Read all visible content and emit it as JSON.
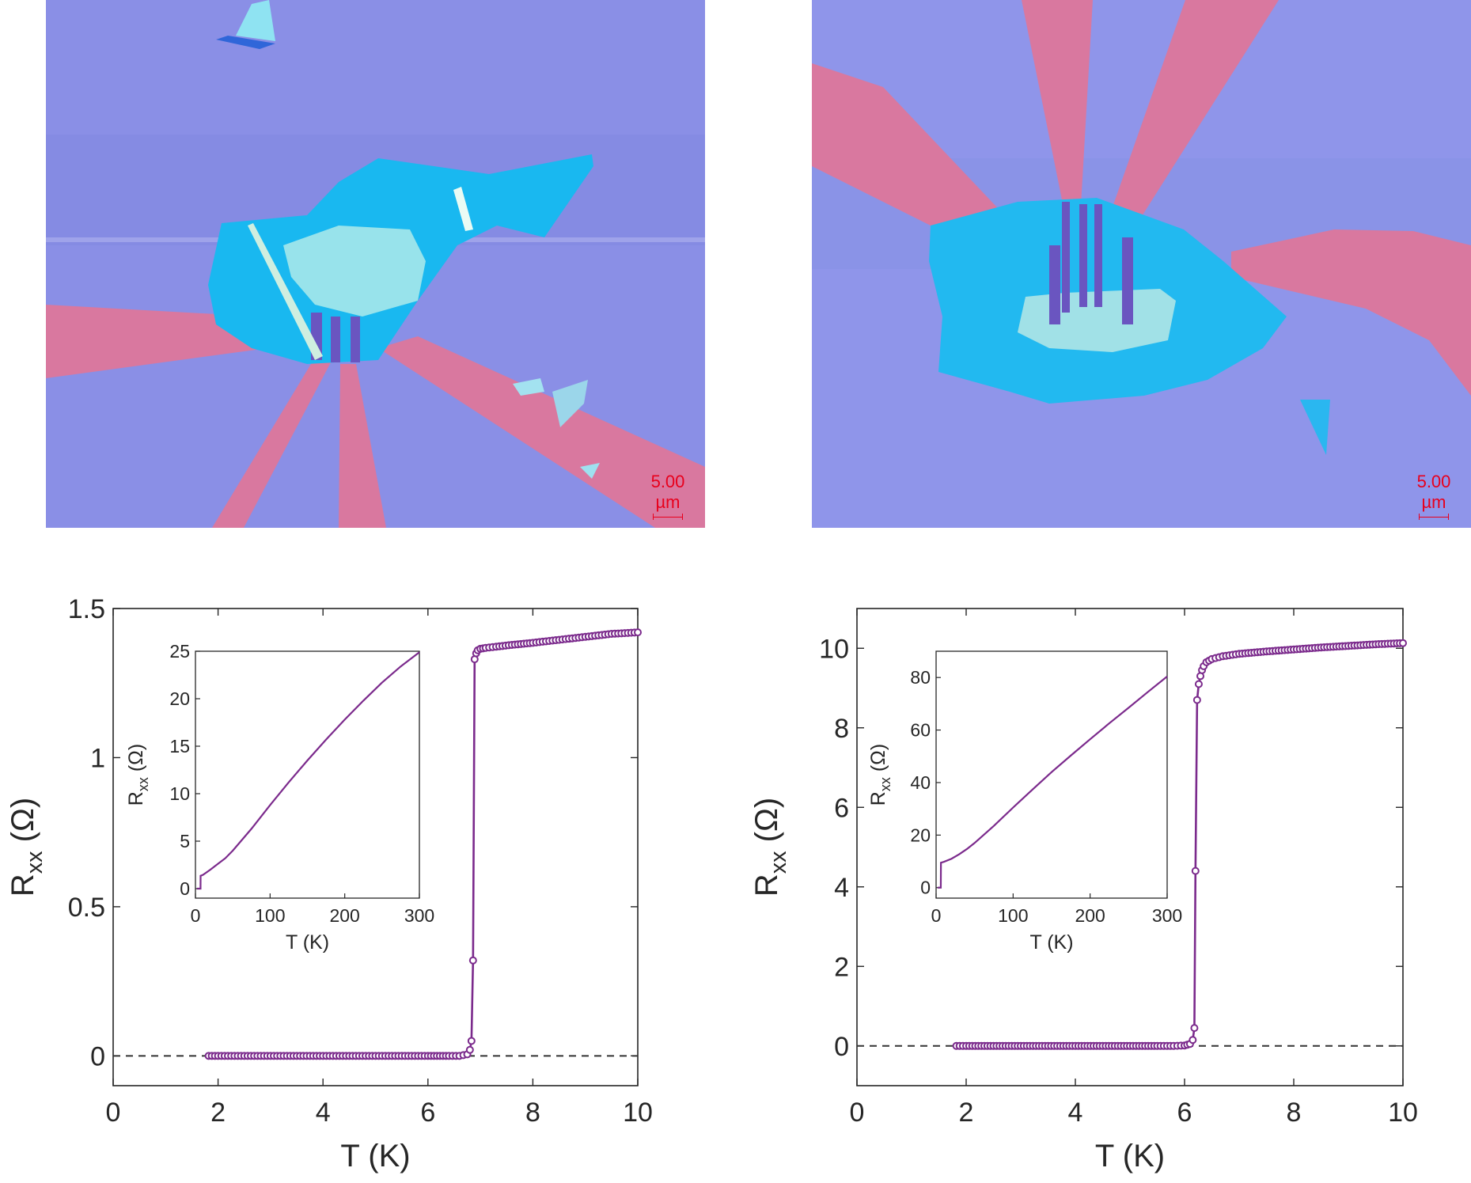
{
  "figure": {
    "accent_color": "#7b2a8c",
    "photos": [
      {
        "id": "left",
        "scale_label": "5.00 µm",
        "substrate_color": "#8a8fe6",
        "flake_color": "#19b8f0",
        "electrode_color": "#d9789f"
      },
      {
        "id": "right",
        "scale_label": "5.00 µm",
        "substrate_color": "#8f95ea",
        "flake_color": "#22b9f0",
        "electrode_color": "#d9789f"
      }
    ]
  },
  "chart_data": [
    {
      "type": "line",
      "xlabel": "T (K)",
      "ylabel_main": "R",
      "ylabel_sub": "xx",
      "ylabel_unit": "(Ω)",
      "xlim": [
        0,
        10
      ],
      "ylim": [
        -0.1,
        1.5
      ],
      "xticks": [
        "0",
        "2",
        "4",
        "6",
        "8",
        "10"
      ],
      "yticks": [
        {
          "v": 0,
          "label": "0"
        },
        {
          "v": 0.5,
          "label": "0.5"
        },
        {
          "v": 1,
          "label": "1"
        },
        {
          "v": 1.5,
          "label": "1.5"
        }
      ],
      "zero_line": "dashed",
      "series": [
        {
          "color": "#7b2a8c",
          "marker": "open-circle",
          "x": [
            1.82,
            2.0,
            2.5,
            3.0,
            3.5,
            4.0,
            4.5,
            5.0,
            5.5,
            6.0,
            6.4,
            6.6,
            6.75,
            6.8,
            6.83,
            6.86,
            6.89,
            6.92,
            6.95,
            7.0,
            7.1,
            7.3,
            7.6,
            8.0,
            8.5,
            9.0,
            9.5,
            10.0
          ],
          "y": [
            0,
            0,
            0,
            0,
            0,
            0,
            0,
            0,
            0,
            0,
            0,
            0,
            0.005,
            0.02,
            0.05,
            0.32,
            1.33,
            1.35,
            1.36,
            1.365,
            1.368,
            1.372,
            1.378,
            1.385,
            1.395,
            1.405,
            1.415,
            1.42
          ]
        }
      ],
      "inset": {
        "xlabel": "T (K)",
        "ylabel_main": "R",
        "ylabel_sub": "xx",
        "ylabel_unit": "(Ω)",
        "xlim": [
          0,
          300
        ],
        "ylim": [
          -1,
          25
        ],
        "xticks": [
          "0",
          "100",
          "200",
          "300"
        ],
        "yticks": [
          {
            "v": 0,
            "label": "0"
          },
          {
            "v": 5,
            "label": "5"
          },
          {
            "v": 10,
            "label": "10"
          },
          {
            "v": 15,
            "label": "15"
          },
          {
            "v": 20,
            "label": "20"
          },
          {
            "v": 25,
            "label": "25"
          }
        ],
        "x": [
          2,
          6.8,
          6.9,
          10,
          20,
          30,
          40,
          50,
          75,
          100,
          125,
          150,
          175,
          200,
          225,
          250,
          275,
          300
        ],
        "y": [
          0,
          0,
          1.35,
          1.45,
          2.0,
          2.6,
          3.2,
          4.0,
          6.3,
          8.8,
          11.2,
          13.5,
          15.7,
          17.8,
          19.8,
          21.7,
          23.4,
          24.9
        ]
      }
    },
    {
      "type": "line",
      "xlabel": "T (K)",
      "ylabel_main": "R",
      "ylabel_sub": "xx",
      "ylabel_unit": "(Ω)",
      "xlim": [
        0,
        10
      ],
      "ylim": [
        -1,
        11
      ],
      "xticks": [
        "0",
        "2",
        "4",
        "6",
        "8",
        "10"
      ],
      "yticks": [
        {
          "v": 0,
          "label": "0"
        },
        {
          "v": 2,
          "label": "2"
        },
        {
          "v": 4,
          "label": "4"
        },
        {
          "v": 6,
          "label": "6"
        },
        {
          "v": 8,
          "label": "8"
        },
        {
          "v": 10,
          "label": "10"
        }
      ],
      "zero_line": "dashed",
      "series": [
        {
          "color": "#7b2a8c",
          "marker": "open-circle",
          "x": [
            1.82,
            2.0,
            2.5,
            3.0,
            3.5,
            4.0,
            4.5,
            5.0,
            5.5,
            5.8,
            6.0,
            6.1,
            6.15,
            6.18,
            6.2,
            6.23,
            6.26,
            6.29,
            6.32,
            6.35,
            6.4,
            6.5,
            6.7,
            7.0,
            7.5,
            8.0,
            8.5,
            9.0,
            9.5,
            10.0
          ],
          "y": [
            0,
            0,
            0,
            0,
            0,
            0,
            0,
            0,
            0,
            0,
            0.01,
            0.05,
            0.15,
            0.45,
            4.4,
            8.7,
            9.1,
            9.3,
            9.45,
            9.55,
            9.65,
            9.73,
            9.8,
            9.86,
            9.92,
            9.97,
            10.02,
            10.06,
            10.1,
            10.13
          ]
        }
      ],
      "inset": {
        "xlabel": "T (K)",
        "ylabel_main": "R",
        "ylabel_sub": "xx",
        "ylabel_unit": "(Ω)",
        "xlim": [
          0,
          300
        ],
        "ylim": [
          -4,
          90
        ],
        "xticks": [
          "0",
          "100",
          "200",
          "300"
        ],
        "yticks": [
          {
            "v": 0,
            "label": "0"
          },
          {
            "v": 20,
            "label": "20"
          },
          {
            "v": 40,
            "label": "40"
          },
          {
            "v": 60,
            "label": "60"
          },
          {
            "v": 80,
            "label": "80"
          }
        ],
        "x": [
          2,
          6.1,
          6.3,
          10,
          20,
          30,
          40,
          50,
          75,
          100,
          125,
          150,
          175,
          200,
          225,
          250,
          275,
          300
        ],
        "y": [
          0,
          0,
          9.5,
          9.8,
          11.0,
          12.7,
          14.7,
          17.0,
          23.5,
          30.5,
          37.3,
          44.0,
          50.3,
          56.5,
          62.6,
          68.5,
          74.5,
          80.4
        ]
      }
    }
  ]
}
